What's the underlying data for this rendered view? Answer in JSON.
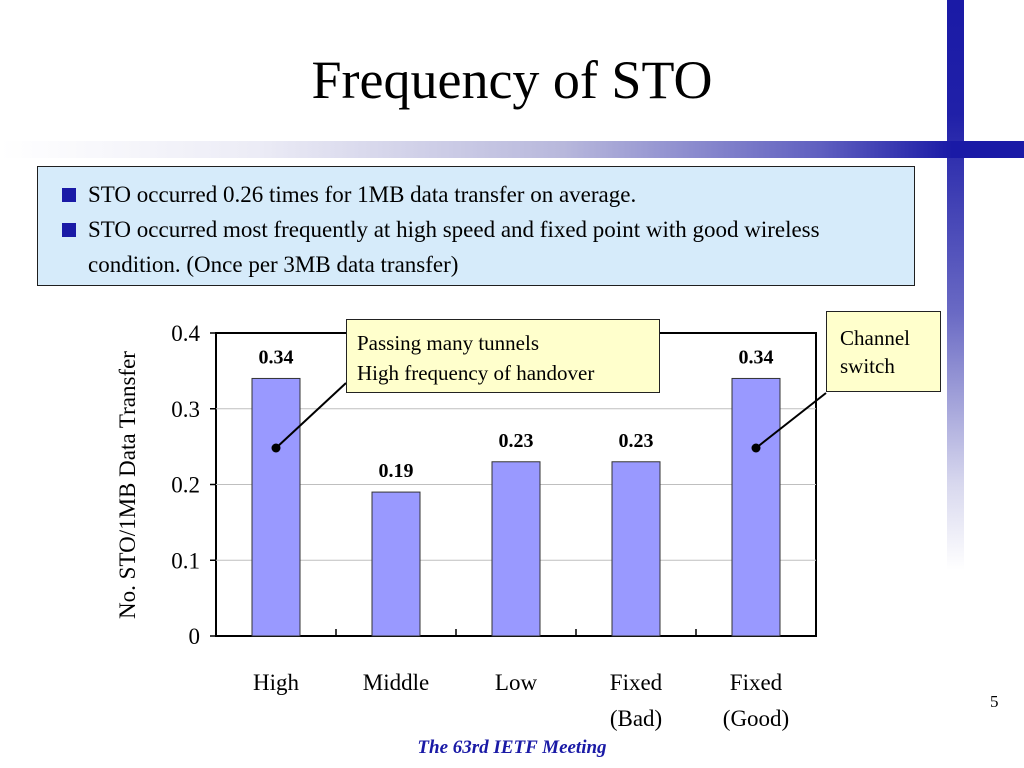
{
  "slide": {
    "title": "Frequency of STO",
    "bullets": [
      "STO occurred 0.26 times for 1MB data transfer on average.",
      "STO occurred most frequently at high speed and fixed point with good wireless condition. (Once per 3MB data transfer)"
    ],
    "page_number": "5",
    "footer": "The 63rd IETF Meeting",
    "accent_color": "#1a1aa6"
  },
  "chart_data": {
    "type": "bar",
    "categories": [
      [
        "High"
      ],
      [
        "Middle"
      ],
      [
        "Low"
      ],
      [
        "Fixed",
        "(Bad)"
      ],
      [
        "Fixed",
        "(Good)"
      ]
    ],
    "values": [
      0.34,
      0.19,
      0.23,
      0.23,
      0.34
    ],
    "data_labels": [
      "0.34",
      "0.19",
      "0.23",
      "0.23",
      "0.34"
    ],
    "ylabel": "No. STO/1MB Data Transfer",
    "ylim": [
      0,
      0.4
    ],
    "yticks": [
      0,
      0.1,
      0.2,
      0.3,
      0.4
    ],
    "ytick_labels": [
      "0",
      "0.1",
      "0.2",
      "0.3",
      "0.4"
    ],
    "grid": true,
    "bar_color": "#9999ff",
    "annotations": [
      {
        "lines": [
          "Passing many tunnels",
          "High frequency of handover"
        ],
        "target_category": 0
      },
      {
        "lines": [
          "Channel",
          "switch"
        ],
        "target_category": 4
      }
    ]
  }
}
